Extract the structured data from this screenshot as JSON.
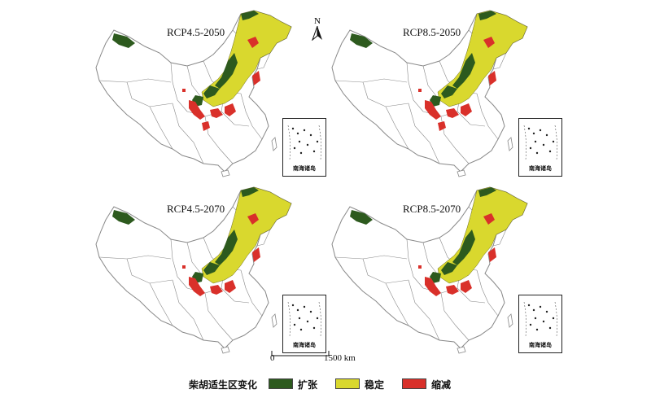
{
  "panels": [
    {
      "title": "RCP4.5-2050",
      "inset_label": "南海诸岛"
    },
    {
      "title": "RCP8.5-2050",
      "inset_label": "南海诸岛"
    },
    {
      "title": "RCP4.5-2070",
      "inset_label": "南海诸岛"
    },
    {
      "title": "RCP8.5-2070",
      "inset_label": "南海诸岛"
    }
  ],
  "north_arrow": {
    "label": "N"
  },
  "scale_bar": {
    "start": "0",
    "end": "1500 km"
  },
  "legend": {
    "title": "柴胡适生区变化",
    "items": [
      {
        "label": "扩张",
        "color": "#2d5a1e"
      },
      {
        "label": "稳定",
        "color": "#d9d82e"
      },
      {
        "label": "缩减",
        "color": "#d9302a"
      }
    ]
  },
  "colors": {
    "border": "#888888",
    "expansion": "#2d5a1e",
    "stable": "#d9d82e",
    "contraction": "#d9302a"
  }
}
